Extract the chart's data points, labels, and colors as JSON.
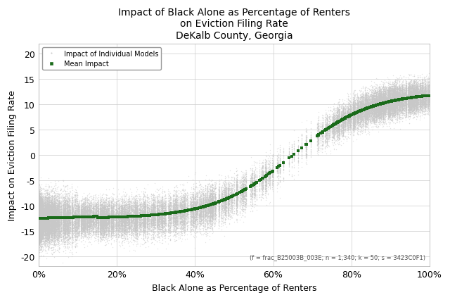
{
  "title_line1": "Impact of Black Alone as Percentage of Renters",
  "title_line2": "on Eviction Filing Rate",
  "title_line3": "DeKalb County, Georgia",
  "xlabel": "Black Alone as Percentage of Renters",
  "ylabel": "Impact on Eviction Filing Rate",
  "annotation": "(f = frac_B25003B_003E; n = 1,340; k = 50; s = 3423C0F1)",
  "xlim": [
    0.0,
    1.0
  ],
  "ylim": [
    -22,
    22
  ],
  "yticks": [
    -20,
    -15,
    -10,
    -5,
    0,
    5,
    10,
    15,
    20
  ],
  "xticks": [
    0.0,
    0.2,
    0.4,
    0.6,
    0.8,
    1.0
  ],
  "xtick_labels": [
    "0%",
    "20%",
    "40%",
    "60%",
    "80%",
    "100%"
  ],
  "individual_color": "#c8c8c8",
  "mean_color": "#1a6b1a",
  "n_models": 50,
  "n_points": 1340,
  "seed": 42,
  "bg_color": "#ffffff",
  "grid_color": "#cccccc"
}
